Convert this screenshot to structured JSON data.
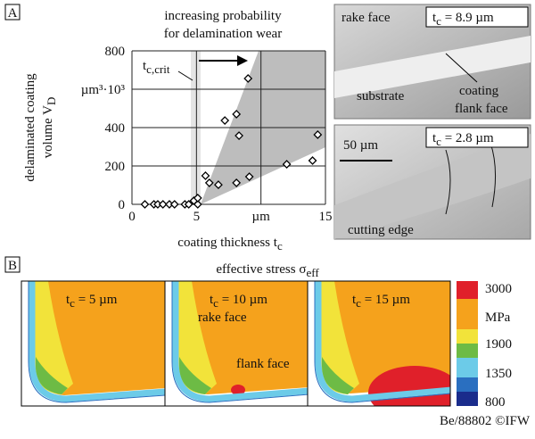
{
  "panel_a_label": "A",
  "chart_data": {
    "type": "scatter",
    "annotation": [
      "increasing probability",
      "for delamination wear"
    ],
    "t_crit": {
      "text": "t",
      "sub": "c,crit"
    },
    "y_label": {
      "line1": "delaminated coating",
      "line2": "volume V",
      "sub": "D"
    },
    "x_label": {
      "text": "coating thickness t",
      "sub": "c"
    },
    "x": [
      1.0,
      1.7,
      2.0,
      2.4,
      2.9,
      3.3,
      4.1,
      4.4,
      5.1,
      4.8,
      5.1,
      5.7,
      6.0,
      6.7,
      7.2,
      8.1,
      8.3,
      8.1,
      9.1,
      9.0,
      12.0,
      14.0,
      14.4
    ],
    "values": [
      0,
      0,
      0,
      0,
      0,
      0,
      0,
      0,
      0,
      19,
      33,
      149,
      112,
      102,
      437,
      470,
      358,
      112,
      144,
      656,
      209,
      228,
      363
    ],
    "xlim": [
      0,
      15
    ],
    "ylim": [
      0,
      800
    ],
    "xticks": [
      0,
      5,
      {
        "value": 10,
        "label": "µm"
      },
      15
    ],
    "yticks": [
      0,
      200,
      400,
      {
        "value": 600,
        "label": "µm³·10³"
      },
      800
    ],
    "grid": true,
    "color": "#000000"
  },
  "micrographs": [
    {
      "labels": [
        "rake face",
        "substrate",
        "coating",
        "flank face"
      ],
      "thickness": {
        "text": "t",
        "sub": "c",
        "value": " = 8.9 µm"
      }
    },
    {
      "labels": [
        "cutting edge"
      ],
      "scale_bar": "50 µm",
      "thickness": {
        "text": "t",
        "sub": "c",
        "value": " = 2.8 µm"
      }
    }
  ],
  "panel_b_label": "B",
  "panel_b": {
    "title": {
      "text": "effective stress σ",
      "sub": "eff"
    },
    "simulations": [
      {
        "thickness": {
          "text": "t",
          "sub": "c",
          "value": " = 5 µm"
        }
      },
      {
        "thickness": {
          "text": "t",
          "sub": "c",
          "value": " = 10 µm"
        },
        "labels": [
          "rake face",
          "flank face"
        ]
      },
      {
        "thickness": {
          "text": "t",
          "sub": "c",
          "value": " = 15 µm"
        }
      }
    ],
    "colorbar": [
      "3000",
      "MPa",
      "1900",
      "1350",
      "800"
    ]
  },
  "credit": "Be/88802 ©IFW"
}
